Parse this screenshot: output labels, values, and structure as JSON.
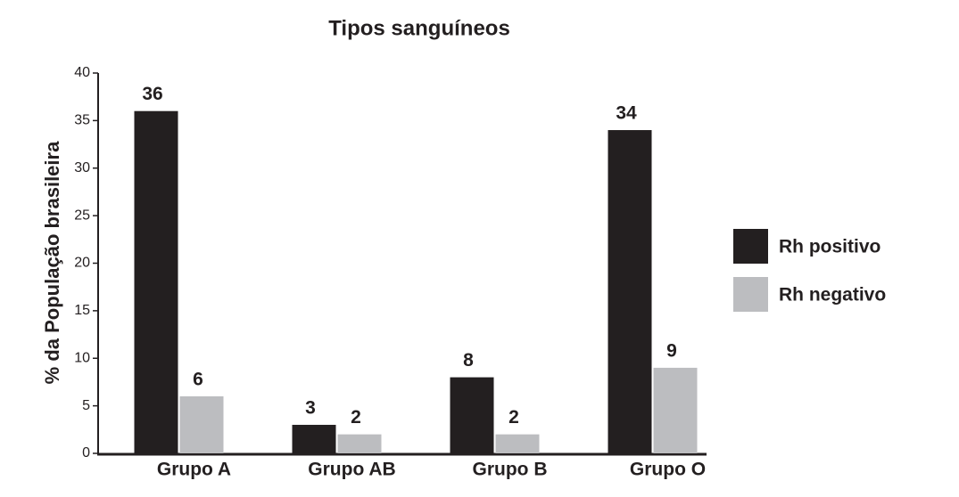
{
  "chart_data": {
    "type": "bar",
    "title": "Tipos sanguíneos",
    "y_label": "% da População brasileira",
    "categories": [
      "Grupo A",
      "Grupo AB",
      "Grupo B",
      "Grupo O"
    ],
    "series": [
      {
        "name": "Rh positivo",
        "color": "#231f20",
        "values": [
          36,
          3,
          8,
          34
        ]
      },
      {
        "name": "Rh negativo",
        "color": "#bcbdc0",
        "values": [
          6,
          2,
          2,
          9
        ]
      }
    ],
    "ylim": [
      0,
      40
    ],
    "yticks": [
      0,
      5,
      10,
      15,
      20,
      25,
      30,
      35,
      40
    ],
    "legend": "right"
  }
}
